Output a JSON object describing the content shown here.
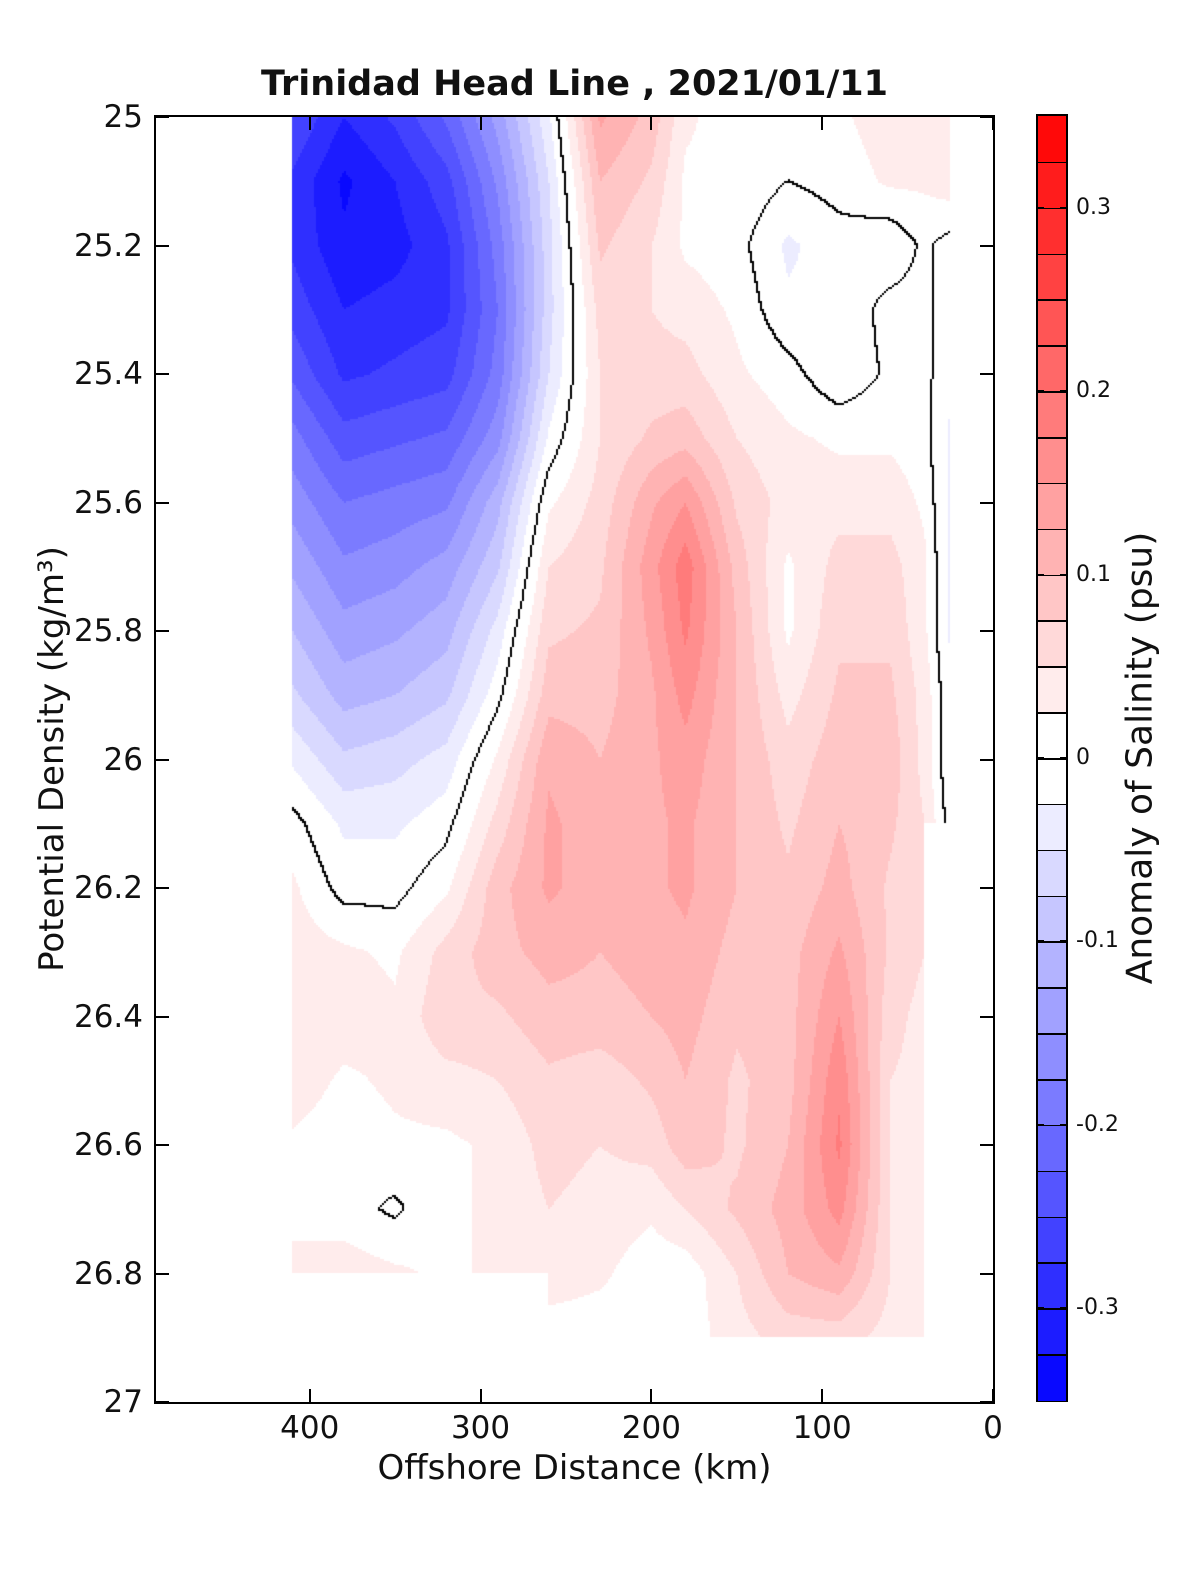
{
  "title": "Trinidad Head Line , 2021/01/11",
  "axes": {
    "xlabel": "Offshore Distance (km)",
    "ylabel": "Potential Density (kg/m³)",
    "x_ticks": [
      {
        "value": 400,
        "label": "400"
      },
      {
        "value": 300,
        "label": "300"
      },
      {
        "value": 200,
        "label": "200"
      },
      {
        "value": 100,
        "label": "100"
      },
      {
        "value": 0,
        "label": "0"
      }
    ],
    "y_ticks": [
      {
        "value": 25,
        "label": "25"
      },
      {
        "value": 25.2,
        "label": "25.2"
      },
      {
        "value": 25.4,
        "label": "25.4"
      },
      {
        "value": 25.6,
        "label": "25.6"
      },
      {
        "value": 25.8,
        "label": "25.8"
      },
      {
        "value": 26,
        "label": "26"
      },
      {
        "value": 26.2,
        "label": "26.2"
      },
      {
        "value": 26.4,
        "label": "26.4"
      },
      {
        "value": 26.6,
        "label": "26.6"
      },
      {
        "value": 26.8,
        "label": "26.8"
      },
      {
        "value": 27,
        "label": "27"
      }
    ],
    "x_range_km": [
      490,
      0
    ],
    "x_axis_reversed": true,
    "y_range_density": [
      25,
      27
    ],
    "y_axis_increases_downward": true
  },
  "colorbar": {
    "label": "Anomaly of Salinity (psu)",
    "ticks": [
      {
        "value": 0.3,
        "label": "0.3"
      },
      {
        "value": 0.2,
        "label": "0.2"
      },
      {
        "value": 0.1,
        "label": "0.1"
      },
      {
        "value": 0,
        "label": "0"
      },
      {
        "value": -0.1,
        "label": "-0.1"
      },
      {
        "value": -0.2,
        "label": "-0.2"
      },
      {
        "value": -0.3,
        "label": "-0.3"
      }
    ],
    "range": [
      -0.35,
      0.35
    ],
    "n_bins": 28,
    "bin_width": 0.025,
    "colormap": {
      "negative_end": "#0000ff",
      "center": "#ffffff",
      "positive_end": "#ff0000"
    }
  },
  "chart_data": {
    "type": "heatmap",
    "subtype": "filled_contour_section",
    "title": "Trinidad Head Line , 2021/01/11",
    "xlabel": "Offshore Distance (km)",
    "ylabel": "Potential Density (kg/m³)",
    "value_label": "Anomaly of Salinity (psu)",
    "contour_interval": 0.025,
    "zero_contour_line_color": "#000000",
    "x_km": [
      410,
      380,
      350,
      320,
      290,
      260,
      230,
      200,
      180,
      150,
      120,
      90,
      60,
      40,
      25
    ],
    "y_density": [
      25.0,
      25.1,
      25.2,
      25.3,
      25.4,
      25.5,
      25.6,
      25.7,
      25.8,
      25.9,
      26.0,
      26.1,
      26.2,
      26.3,
      26.4,
      26.5,
      26.6,
      26.7,
      26.8,
      26.9,
      27.0
    ],
    "values": [
      [
        -0.25,
        -0.3,
        -0.27,
        -0.22,
        -0.14,
        -0.03,
        0.13,
        0.09,
        0.03,
        0.01,
        0.02,
        0.02,
        0.04,
        0.04,
        0.04
      ],
      [
        -0.28,
        -0.33,
        -0.3,
        -0.26,
        -0.17,
        -0.05,
        0.1,
        0.07,
        0.02,
        0.02,
        0.0,
        0.01,
        0.03,
        0.03,
        0.04
      ],
      [
        -0.28,
        -0.32,
        -0.31,
        -0.28,
        -0.19,
        -0.06,
        0.08,
        0.05,
        0.02,
        0.01,
        -0.03,
        -0.01,
        -0.02,
        0.005,
        -0.01
      ],
      [
        -0.26,
        -0.3,
        -0.29,
        -0.28,
        -0.2,
        -0.06,
        0.06,
        0.05,
        0.04,
        0.02,
        -0.02,
        -0.02,
        0.01,
        0.01,
        -0.02
      ],
      [
        -0.23,
        -0.28,
        -0.27,
        -0.26,
        -0.19,
        -0.05,
        0.05,
        0.06,
        0.06,
        0.03,
        0.01,
        -0.02,
        0.005,
        0.01,
        -0.02
      ],
      [
        -0.19,
        -0.24,
        -0.23,
        -0.22,
        -0.16,
        -0.02,
        0.05,
        0.08,
        0.09,
        0.05,
        0.03,
        0.02,
        0.02,
        0.01,
        -0.03
      ],
      [
        -0.16,
        -0.2,
        -0.19,
        -0.18,
        -0.11,
        0.02,
        0.06,
        0.12,
        0.15,
        0.07,
        0.04,
        0.04,
        0.04,
        0.02,
        -0.03
      ],
      [
        -0.13,
        -0.17,
        -0.16,
        -0.14,
        -0.08,
        0.05,
        0.07,
        0.14,
        0.19,
        0.09,
        0.02,
        0.06,
        0.06,
        0.03,
        -0.03
      ],
      [
        -0.1,
        -0.14,
        -0.13,
        -0.11,
        -0.04,
        0.07,
        0.08,
        0.13,
        0.18,
        0.1,
        0.02,
        0.07,
        0.07,
        0.03,
        -0.03
      ],
      [
        -0.07,
        -0.11,
        -0.1,
        -0.08,
        -0.01,
        0.09,
        0.09,
        0.12,
        0.16,
        0.1,
        0.04,
        0.08,
        0.08,
        0.04,
        -0.02
      ],
      [
        -0.03,
        -0.07,
        -0.06,
        -0.04,
        0.03,
        0.12,
        0.1,
        0.12,
        0.14,
        0.1,
        0.06,
        0.09,
        0.09,
        0.04,
        -0.02
      ],
      [
        0.01,
        -0.03,
        -0.03,
        -0.01,
        0.06,
        0.13,
        0.11,
        0.12,
        0.13,
        0.1,
        0.07,
        0.1,
        0.08,
        0.05,
        -0.01
      ],
      [
        0.03,
        -0.01,
        -0.01,
        0.02,
        0.09,
        0.13,
        0.11,
        0.12,
        0.13,
        0.1,
        0.08,
        0.11,
        0.07,
        0.05,
        null
      ],
      [
        0.04,
        0.03,
        0.02,
        0.06,
        0.09,
        0.11,
        0.1,
        0.11,
        0.12,
        0.09,
        0.09,
        0.13,
        0.07,
        0.05,
        null
      ],
      [
        0.05,
        0.04,
        0.03,
        0.07,
        0.07,
        0.09,
        0.09,
        0.1,
        0.11,
        0.08,
        0.09,
        0.15,
        0.06,
        0.04,
        null
      ],
      [
        0.04,
        0.02,
        0.03,
        0.04,
        0.05,
        0.07,
        0.06,
        0.08,
        0.1,
        0.07,
        0.09,
        0.17,
        0.05,
        0.04,
        null
      ],
      [
        0.02,
        0.01,
        0.02,
        0.02,
        0.03,
        0.06,
        0.05,
        0.06,
        0.09,
        0.07,
        0.1,
        0.18,
        0.05,
        0.04,
        null
      ],
      [
        0.02,
        0.01,
        -0.005,
        0.02,
        0.03,
        0.05,
        0.04,
        0.03,
        0.05,
        0.08,
        0.11,
        0.16,
        0.05,
        0.04,
        null
      ],
      [
        0.03,
        0.04,
        0.03,
        0.02,
        0.03,
        0.04,
        0.03,
        0.01,
        0.01,
        0.05,
        0.1,
        0.12,
        0.05,
        0.04,
        null
      ],
      [
        null,
        null,
        null,
        null,
        null,
        0.01,
        0.01,
        0.01,
        0.01,
        0.04,
        0.06,
        0.06,
        0.04,
        0.03,
        null
      ],
      [
        null,
        null,
        null,
        null,
        null,
        null,
        null,
        null,
        null,
        null,
        null,
        null,
        null,
        null,
        null
      ]
    ]
  }
}
